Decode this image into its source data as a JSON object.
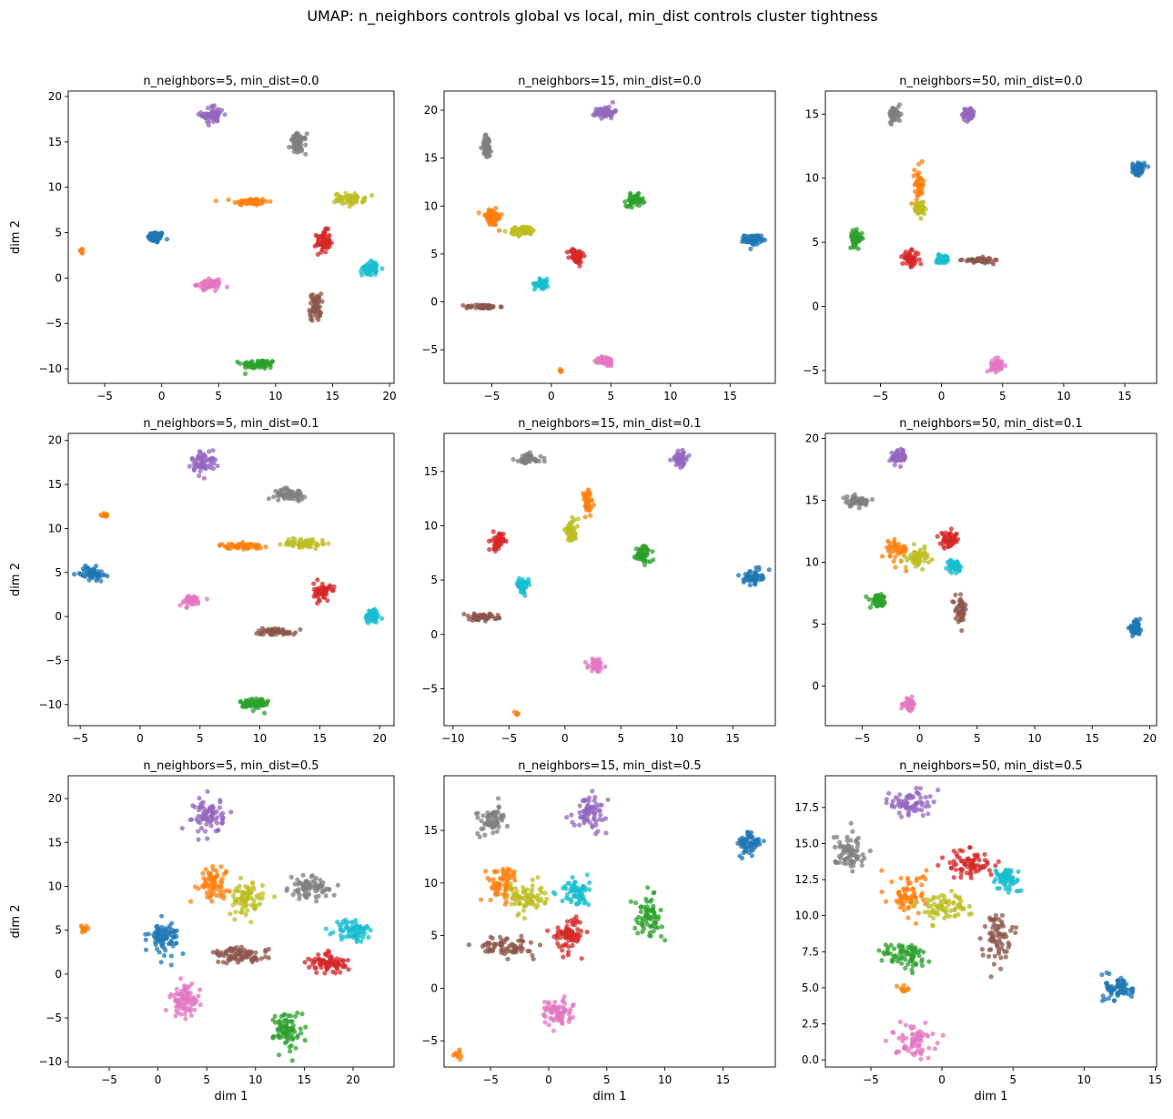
{
  "figure": {
    "suptitle": "UMAP: n_neighbors controls global vs local, min_dist controls cluster tightness"
  },
  "chart_data": [
    {
      "type": "scatter",
      "title": "n_neighbors=5, min_dist=0.0",
      "xlabel": "",
      "ylabel": "dim 2",
      "xlim": [
        -8.2,
        20.4
      ],
      "ylim": [
        -11.6,
        20.6
      ],
      "xticks": [
        -5,
        0,
        5,
        10,
        15,
        20
      ],
      "yticks": [
        -10,
        -5,
        0,
        5,
        10,
        15,
        20
      ],
      "clusters": [
        {
          "color": "#1f77b4",
          "x": -0.5,
          "y": 4.5,
          "rx": 0.7,
          "ry": 0.6,
          "n": 70
        },
        {
          "color": "#ff7f0e",
          "x": 7.8,
          "y": 8.4,
          "rx": 1.5,
          "ry": 0.4,
          "n": 60
        },
        {
          "color": "#ff7f0e",
          "x": -7.0,
          "y": 3.0,
          "rx": 0.2,
          "ry": 0.4,
          "n": 10
        },
        {
          "color": "#2ca02c",
          "x": 8.5,
          "y": -9.5,
          "rx": 1.5,
          "ry": 0.5,
          "n": 65
        },
        {
          "color": "#d62728",
          "x": 14.2,
          "y": 4.0,
          "rx": 0.6,
          "ry": 1.2,
          "n": 60
        },
        {
          "color": "#9467bd",
          "x": 4.5,
          "y": 18.0,
          "rx": 1.0,
          "ry": 1.0,
          "n": 60
        },
        {
          "color": "#8c564b",
          "x": 13.5,
          "y": -3.2,
          "rx": 0.5,
          "ry": 1.5,
          "n": 55
        },
        {
          "color": "#e377c2",
          "x": 4.2,
          "y": -0.7,
          "rx": 1.1,
          "ry": 0.5,
          "n": 60
        },
        {
          "color": "#7f7f7f",
          "x": 12.0,
          "y": 14.8,
          "rx": 0.7,
          "ry": 1.1,
          "n": 60
        },
        {
          "color": "#bcbd22",
          "x": 16.5,
          "y": 8.7,
          "rx": 1.3,
          "ry": 0.6,
          "n": 60
        },
        {
          "color": "#17becf",
          "x": 18.3,
          "y": 1.1,
          "rx": 0.7,
          "ry": 0.8,
          "n": 60
        }
      ]
    },
    {
      "type": "scatter",
      "title": "n_neighbors=15, min_dist=0.0",
      "xlabel": "",
      "ylabel": "",
      "xlim": [
        -9.0,
        18.8
      ],
      "ylim": [
        -8.5,
        22.0
      ],
      "xticks": [
        -5,
        0,
        5,
        10,
        15
      ],
      "yticks": [
        -5,
        0,
        5,
        10,
        15,
        20
      ],
      "clusters": [
        {
          "color": "#1f77b4",
          "x": 16.9,
          "y": 6.5,
          "rx": 0.7,
          "ry": 0.5,
          "n": 60
        },
        {
          "color": "#ff7f0e",
          "x": -5.0,
          "y": 8.8,
          "rx": 0.9,
          "ry": 0.9,
          "n": 55
        },
        {
          "color": "#ff7f0e",
          "x": 0.8,
          "y": -7.2,
          "rx": 0.2,
          "ry": 0.2,
          "n": 6
        },
        {
          "color": "#2ca02c",
          "x": 7.0,
          "y": 10.6,
          "rx": 0.7,
          "ry": 0.6,
          "n": 60
        },
        {
          "color": "#d62728",
          "x": 2.1,
          "y": 4.8,
          "rx": 0.6,
          "ry": 0.8,
          "n": 55
        },
        {
          "color": "#9467bd",
          "x": 4.5,
          "y": 19.8,
          "rx": 0.8,
          "ry": 0.6,
          "n": 60
        },
        {
          "color": "#8c564b",
          "x": -5.8,
          "y": -0.5,
          "rx": 1.4,
          "ry": 0.2,
          "n": 55
        },
        {
          "color": "#e377c2",
          "x": 4.6,
          "y": -6.2,
          "rx": 0.6,
          "ry": 0.5,
          "n": 55
        },
        {
          "color": "#7f7f7f",
          "x": -5.4,
          "y": 16.2,
          "rx": 0.4,
          "ry": 1.2,
          "n": 55
        },
        {
          "color": "#bcbd22",
          "x": -2.4,
          "y": 7.4,
          "rx": 1.1,
          "ry": 0.5,
          "n": 55
        },
        {
          "color": "#17becf",
          "x": -0.8,
          "y": 1.9,
          "rx": 0.6,
          "ry": 0.5,
          "n": 55
        }
      ]
    },
    {
      "type": "scatter",
      "title": "n_neighbors=50, min_dist=0.0",
      "xlabel": "",
      "ylabel": "",
      "xlim": [
        -9.5,
        17.6
      ],
      "ylim": [
        -6.0,
        16.8
      ],
      "xticks": [
        -5,
        0,
        5,
        10,
        15
      ],
      "yticks": [
        -5,
        0,
        5,
        10,
        15
      ],
      "clusters": [
        {
          "color": "#1f77b4",
          "x": 16.1,
          "y": 10.8,
          "rx": 0.5,
          "ry": 0.5,
          "n": 55
        },
        {
          "color": "#ff7f0e",
          "x": -1.8,
          "y": 9.5,
          "rx": 0.4,
          "ry": 1.4,
          "n": 45
        },
        {
          "color": "#2ca02c",
          "x": -7.0,
          "y": 5.3,
          "rx": 0.5,
          "ry": 0.6,
          "n": 55
        },
        {
          "color": "#d62728",
          "x": -2.5,
          "y": 3.7,
          "rx": 0.7,
          "ry": 0.6,
          "n": 50
        },
        {
          "color": "#9467bd",
          "x": 2.2,
          "y": 15.0,
          "rx": 0.5,
          "ry": 0.5,
          "n": 55
        },
        {
          "color": "#8c564b",
          "x": 3.0,
          "y": 3.6,
          "rx": 1.2,
          "ry": 0.2,
          "n": 50
        },
        {
          "color": "#e377c2",
          "x": 4.5,
          "y": -4.6,
          "rx": 0.5,
          "ry": 0.5,
          "n": 50
        },
        {
          "color": "#7f7f7f",
          "x": -3.8,
          "y": 15.0,
          "rx": 0.5,
          "ry": 0.6,
          "n": 55
        },
        {
          "color": "#bcbd22",
          "x": -1.8,
          "y": 7.6,
          "rx": 0.4,
          "ry": 0.6,
          "n": 45
        },
        {
          "color": "#17becf",
          "x": 0.0,
          "y": 3.7,
          "rx": 0.5,
          "ry": 0.3,
          "n": 45
        }
      ]
    },
    {
      "type": "scatter",
      "title": "n_neighbors=5, min_dist=0.1",
      "xlabel": "",
      "ylabel": "dim 2",
      "xlim": [
        -6.0,
        21.2
      ],
      "ylim": [
        -12.4,
        20.8
      ],
      "xticks": [
        -5,
        0,
        5,
        10,
        15,
        20
      ],
      "yticks": [
        -10,
        -5,
        0,
        5,
        10,
        15,
        20
      ],
      "clusters": [
        {
          "color": "#1f77b4",
          "x": -4.0,
          "y": 4.9,
          "rx": 1.0,
          "ry": 0.7,
          "n": 65
        },
        {
          "color": "#ff7f0e",
          "x": 8.5,
          "y": 8.0,
          "rx": 1.8,
          "ry": 0.3,
          "n": 55
        },
        {
          "color": "#ff7f0e",
          "x": -3.0,
          "y": 11.5,
          "rx": 0.3,
          "ry": 0.3,
          "n": 10
        },
        {
          "color": "#2ca02c",
          "x": 9.6,
          "y": -9.9,
          "rx": 1.2,
          "ry": 0.8,
          "n": 65
        },
        {
          "color": "#d62728",
          "x": 15.2,
          "y": 2.8,
          "rx": 0.7,
          "ry": 1.0,
          "n": 55
        },
        {
          "color": "#9467bd",
          "x": 5.3,
          "y": 17.6,
          "rx": 1.0,
          "ry": 1.3,
          "n": 60
        },
        {
          "color": "#8c564b",
          "x": 11.3,
          "y": -1.7,
          "rx": 1.7,
          "ry": 0.4,
          "n": 55
        },
        {
          "color": "#e377c2",
          "x": 4.2,
          "y": 1.8,
          "rx": 1.0,
          "ry": 0.6,
          "n": 55
        },
        {
          "color": "#7f7f7f",
          "x": 12.5,
          "y": 13.9,
          "rx": 1.3,
          "ry": 0.6,
          "n": 55
        },
        {
          "color": "#bcbd22",
          "x": 13.8,
          "y": 8.3,
          "rx": 1.8,
          "ry": 0.6,
          "n": 60
        },
        {
          "color": "#17becf",
          "x": 19.4,
          "y": 0.1,
          "rx": 0.6,
          "ry": 0.8,
          "n": 55
        }
      ]
    },
    {
      "type": "scatter",
      "title": "n_neighbors=15, min_dist=0.1",
      "xlabel": "",
      "ylabel": "",
      "xlim": [
        -10.8,
        18.8
      ],
      "ylim": [
        -8.4,
        18.5
      ],
      "xticks": [
        -10,
        -5,
        0,
        5,
        10,
        15
      ],
      "yticks": [
        -5,
        0,
        5,
        10,
        15
      ],
      "clusters": [
        {
          "color": "#1f77b4",
          "x": 16.8,
          "y": 5.3,
          "rx": 0.8,
          "ry": 0.6,
          "n": 60
        },
        {
          "color": "#ff7f0e",
          "x": 2.0,
          "y": 12.0,
          "rx": 0.5,
          "ry": 1.3,
          "n": 50
        },
        {
          "color": "#ff7f0e",
          "x": -4.3,
          "y": -7.3,
          "rx": 0.2,
          "ry": 0.2,
          "n": 6
        },
        {
          "color": "#2ca02c",
          "x": 7.0,
          "y": 7.4,
          "rx": 0.7,
          "ry": 0.8,
          "n": 55
        },
        {
          "color": "#d62728",
          "x": -6.0,
          "y": 8.5,
          "rx": 0.5,
          "ry": 0.8,
          "n": 50
        },
        {
          "color": "#9467bd",
          "x": 10.3,
          "y": 16.2,
          "rx": 0.7,
          "ry": 0.7,
          "n": 55
        },
        {
          "color": "#8c564b",
          "x": -7.5,
          "y": 1.6,
          "rx": 1.5,
          "ry": 0.3,
          "n": 50
        },
        {
          "color": "#e377c2",
          "x": 2.8,
          "y": -2.8,
          "rx": 0.7,
          "ry": 0.6,
          "n": 55
        },
        {
          "color": "#7f7f7f",
          "x": -3.3,
          "y": 16.1,
          "rx": 1.2,
          "ry": 0.5,
          "n": 50
        },
        {
          "color": "#bcbd22",
          "x": 0.6,
          "y": 9.5,
          "rx": 0.6,
          "ry": 1.0,
          "n": 50
        },
        {
          "color": "#17becf",
          "x": -3.8,
          "y": 4.5,
          "rx": 0.5,
          "ry": 0.6,
          "n": 50
        }
      ]
    },
    {
      "type": "scatter",
      "title": "n_neighbors=50, min_dist=0.1",
      "xlabel": "",
      "ylabel": "",
      "xlim": [
        -8.2,
        20.6
      ],
      "ylim": [
        -3.2,
        20.4
      ],
      "xticks": [
        -5,
        0,
        5,
        10,
        15,
        20
      ],
      "yticks": [
        0,
        5,
        10,
        15,
        20
      ],
      "clusters": [
        {
          "color": "#1f77b4",
          "x": 18.7,
          "y": 4.7,
          "rx": 0.5,
          "ry": 0.5,
          "n": 55
        },
        {
          "color": "#ff7f0e",
          "x": -2.0,
          "y": 11.0,
          "rx": 1.0,
          "ry": 1.0,
          "n": 45
        },
        {
          "color": "#2ca02c",
          "x": -3.6,
          "y": 6.8,
          "rx": 0.7,
          "ry": 0.5,
          "n": 50
        },
        {
          "color": "#d62728",
          "x": 2.6,
          "y": 11.8,
          "rx": 0.8,
          "ry": 0.6,
          "n": 50
        },
        {
          "color": "#9467bd",
          "x": -1.8,
          "y": 18.5,
          "rx": 0.7,
          "ry": 0.6,
          "n": 50
        },
        {
          "color": "#8c564b",
          "x": 3.6,
          "y": 6.2,
          "rx": 0.5,
          "ry": 1.0,
          "n": 45
        },
        {
          "color": "#e377c2",
          "x": -0.9,
          "y": -1.5,
          "rx": 0.5,
          "ry": 0.5,
          "n": 45
        },
        {
          "color": "#7f7f7f",
          "x": -5.5,
          "y": 14.9,
          "rx": 1.2,
          "ry": 0.4,
          "n": 50
        },
        {
          "color": "#bcbd22",
          "x": -0.1,
          "y": 10.4,
          "rx": 0.9,
          "ry": 0.7,
          "n": 50
        },
        {
          "color": "#17becf",
          "x": 3.0,
          "y": 9.7,
          "rx": 0.5,
          "ry": 0.5,
          "n": 45
        }
      ]
    },
    {
      "type": "scatter",
      "title": "n_neighbors=5, min_dist=0.5",
      "xlabel": "dim 1",
      "ylabel": "dim 2",
      "xlim": [
        -9.2,
        24.2
      ],
      "ylim": [
        -10.6,
        22.6
      ],
      "xticks": [
        -5,
        0,
        5,
        10,
        15,
        20
      ],
      "yticks": [
        -10,
        -5,
        0,
        5,
        10,
        15,
        20
      ],
      "clusters": [
        {
          "color": "#1f77b4",
          "x": 0.6,
          "y": 4.2,
          "rx": 1.5,
          "ry": 1.8,
          "n": 80
        },
        {
          "color": "#ff7f0e",
          "x": 5.5,
          "y": 10.5,
          "rx": 1.8,
          "ry": 1.8,
          "n": 70
        },
        {
          "color": "#ff7f0e",
          "x": -7.5,
          "y": 5.0,
          "rx": 0.4,
          "ry": 0.6,
          "n": 12
        },
        {
          "color": "#2ca02c",
          "x": 13.3,
          "y": -6.3,
          "rx": 1.4,
          "ry": 2.2,
          "n": 80
        },
        {
          "color": "#d62728",
          "x": 17.5,
          "y": 1.2,
          "rx": 2.0,
          "ry": 1.2,
          "n": 75
        },
        {
          "color": "#9467bd",
          "x": 5.2,
          "y": 18.1,
          "rx": 1.5,
          "ry": 2.0,
          "n": 80
        },
        {
          "color": "#8c564b",
          "x": 8.5,
          "y": 2.1,
          "rx": 2.8,
          "ry": 0.9,
          "n": 80
        },
        {
          "color": "#e377c2",
          "x": 2.8,
          "y": -3.0,
          "rx": 1.5,
          "ry": 1.8,
          "n": 80
        },
        {
          "color": "#7f7f7f",
          "x": 15.5,
          "y": 9.8,
          "rx": 2.0,
          "ry": 1.2,
          "n": 75
        },
        {
          "color": "#bcbd22",
          "x": 9.0,
          "y": 8.5,
          "rx": 1.8,
          "ry": 1.8,
          "n": 75
        },
        {
          "color": "#17becf",
          "x": 20.0,
          "y": 5.0,
          "rx": 1.8,
          "ry": 1.3,
          "n": 75
        }
      ]
    },
    {
      "type": "scatter",
      "title": "n_neighbors=15, min_dist=0.5",
      "xlabel": "dim 1",
      "ylabel": "",
      "xlim": [
        -9.0,
        19.5
      ],
      "ylim": [
        -7.5,
        20.2
      ],
      "xticks": [
        -5,
        0,
        5,
        10,
        15
      ],
      "yticks": [
        -5,
        0,
        5,
        10,
        15
      ],
      "clusters": [
        {
          "color": "#1f77b4",
          "x": 17.3,
          "y": 13.7,
          "rx": 1.0,
          "ry": 1.2,
          "n": 65
        },
        {
          "color": "#ff7f0e",
          "x": -4.0,
          "y": 10.0,
          "rx": 1.4,
          "ry": 1.6,
          "n": 70
        },
        {
          "color": "#ff7f0e",
          "x": -7.8,
          "y": -6.3,
          "rx": 0.3,
          "ry": 0.5,
          "n": 10
        },
        {
          "color": "#2ca02c",
          "x": 8.6,
          "y": 6.8,
          "rx": 1.2,
          "ry": 1.8,
          "n": 70
        },
        {
          "color": "#d62728",
          "x": 1.8,
          "y": 5.2,
          "rx": 1.3,
          "ry": 1.6,
          "n": 70
        },
        {
          "color": "#9467bd",
          "x": 3.6,
          "y": 16.8,
          "rx": 1.4,
          "ry": 1.5,
          "n": 70
        },
        {
          "color": "#8c564b",
          "x": -3.7,
          "y": 4.0,
          "rx": 2.4,
          "ry": 0.9,
          "n": 70
        },
        {
          "color": "#e377c2",
          "x": 0.7,
          "y": -2.3,
          "rx": 1.3,
          "ry": 1.3,
          "n": 70
        },
        {
          "color": "#7f7f7f",
          "x": -4.8,
          "y": 15.9,
          "rx": 1.3,
          "ry": 1.3,
          "n": 65
        },
        {
          "color": "#bcbd22",
          "x": -2.0,
          "y": 8.6,
          "rx": 1.6,
          "ry": 1.4,
          "n": 70
        },
        {
          "color": "#17becf",
          "x": 2.3,
          "y": 9.1,
          "rx": 1.2,
          "ry": 1.3,
          "n": 65
        }
      ]
    },
    {
      "type": "scatter",
      "title": "n_neighbors=50, min_dist=0.5",
      "xlabel": "dim 1",
      "ylabel": "",
      "xlim": [
        -8.2,
        15.1
      ],
      "ylim": [
        -0.5,
        19.7
      ],
      "xticks": [
        -5,
        0,
        5,
        10,
        15
      ],
      "yticks": [
        0.0,
        2.5,
        5.0,
        7.5,
        10.0,
        12.5,
        15.0,
        17.5
      ],
      "clusters": [
        {
          "color": "#1f77b4",
          "x": 12.5,
          "y": 5.0,
          "rx": 1.0,
          "ry": 0.9,
          "n": 70
        },
        {
          "color": "#ff7f0e",
          "x": -2.3,
          "y": 11.4,
          "rx": 1.2,
          "ry": 1.6,
          "n": 70
        },
        {
          "color": "#ff7f0e",
          "x": -2.7,
          "y": 4.9,
          "rx": 0.4,
          "ry": 0.4,
          "n": 10
        },
        {
          "color": "#2ca02c",
          "x": -2.5,
          "y": 7.2,
          "rx": 1.6,
          "ry": 1.0,
          "n": 75
        },
        {
          "color": "#d62728",
          "x": 2.0,
          "y": 13.6,
          "rx": 1.6,
          "ry": 1.0,
          "n": 75
        },
        {
          "color": "#9467bd",
          "x": -2.2,
          "y": 17.8,
          "rx": 1.4,
          "ry": 1.0,
          "n": 70
        },
        {
          "color": "#8c564b",
          "x": 3.8,
          "y": 8.6,
          "rx": 1.0,
          "ry": 1.6,
          "n": 70
        },
        {
          "color": "#e377c2",
          "x": -2.0,
          "y": 1.3,
          "rx": 1.4,
          "ry": 1.1,
          "n": 70
        },
        {
          "color": "#7f7f7f",
          "x": -6.5,
          "y": 14.5,
          "rx": 1.1,
          "ry": 1.3,
          "n": 70
        },
        {
          "color": "#bcbd22",
          "x": 0.0,
          "y": 10.7,
          "rx": 1.8,
          "ry": 0.9,
          "n": 75
        },
        {
          "color": "#17becf",
          "x": 4.5,
          "y": 12.5,
          "rx": 1.0,
          "ry": 0.9,
          "n": 65
        }
      ]
    }
  ]
}
